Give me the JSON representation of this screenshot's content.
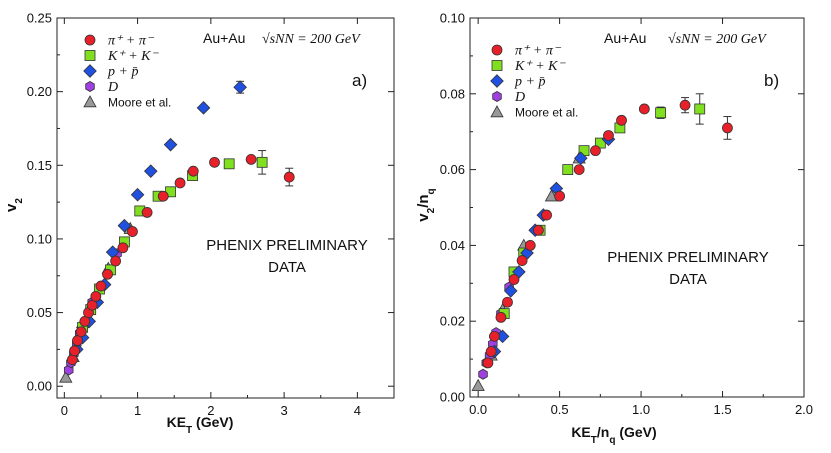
{
  "chart_data": [
    {
      "type": "scatter",
      "panel_label": "a)",
      "collision": "Au+Au",
      "energy_label": "√sNN = 200 GeV",
      "xlabel": "KE_T (GeV)",
      "ylabel": "v_2",
      "xlim": [
        -0.1,
        4.5
      ],
      "ylim": [
        -0.008,
        0.25
      ],
      "xticks": [
        "0",
        "1",
        "2",
        "3",
        "4"
      ],
      "yticks": [
        "0.00",
        "0.05",
        "0.10",
        "0.15",
        "0.20",
        "0.25"
      ],
      "annotation_line1": "PHENIX PRELIMINARY",
      "annotation_line2": "DATA",
      "series": [
        {
          "name": "π⁺ + π⁻",
          "marker": "circle",
          "color": "#e8202a",
          "points": [
            [
              0.11,
              0.018
            ],
            [
              0.14,
              0.024
            ],
            [
              0.18,
              0.031
            ],
            [
              0.23,
              0.037
            ],
            [
              0.28,
              0.044
            ],
            [
              0.33,
              0.05
            ],
            [
              0.38,
              0.055
            ],
            [
              0.43,
              0.061
            ],
            [
              0.5,
              0.068
            ],
            [
              0.59,
              0.076
            ],
            [
              0.7,
              0.085
            ],
            [
              0.8,
              0.094
            ],
            [
              0.93,
              0.105
            ],
            [
              1.13,
              0.118
            ],
            [
              1.35,
              0.129
            ],
            [
              1.58,
              0.138
            ],
            [
              1.76,
              0.146
            ],
            [
              2.05,
              0.152
            ],
            [
              2.55,
              0.154
            ],
            [
              3.07,
              0.142
            ]
          ],
          "errors": [
            [
              3.07,
              0.006
            ]
          ]
        },
        {
          "name": "K⁺ + K⁻",
          "marker": "square",
          "color": "#80e020",
          "points": [
            [
              0.25,
              0.04
            ],
            [
              0.36,
              0.052
            ],
            [
              0.48,
              0.066
            ],
            [
              0.63,
              0.079
            ],
            [
              0.82,
              0.098
            ],
            [
              1.03,
              0.119
            ],
            [
              1.28,
              0.129
            ],
            [
              1.45,
              0.132
            ],
            [
              1.75,
              0.143
            ],
            [
              2.25,
              0.151
            ],
            [
              2.7,
              0.152
            ]
          ],
          "errors": [
            [
              2.7,
              0.008
            ]
          ]
        },
        {
          "name": "p + p̄",
          "marker": "diamond",
          "color": "#2050e0",
          "points": [
            [
              0.17,
              0.025
            ],
            [
              0.25,
              0.033
            ],
            [
              0.34,
              0.044
            ],
            [
              0.45,
              0.057
            ],
            [
              0.55,
              0.069
            ],
            [
              0.66,
              0.091
            ],
            [
              0.82,
              0.109
            ],
            [
              1.0,
              0.13
            ],
            [
              1.18,
              0.146
            ],
            [
              1.45,
              0.164
            ],
            [
              1.9,
              0.189
            ],
            [
              2.4,
              0.203
            ]
          ],
          "errors": [
            [
              2.4,
              0.004
            ]
          ]
        },
        {
          "name": "D",
          "marker": "hexagon",
          "color": "#a040e0",
          "points": [
            [
              0.06,
              0.011
            ],
            [
              0.09,
              0.016
            ],
            [
              0.13,
              0.022
            ],
            [
              0.17,
              0.029
            ],
            [
              0.21,
              0.036
            ],
            [
              0.28,
              0.044
            ],
            [
              0.38,
              0.057
            ],
            [
              0.5,
              0.068
            ],
            [
              0.72,
              0.09
            ]
          ],
          "errors": []
        },
        {
          "name": "Moore  et al.",
          "marker": "triangle",
          "color": "#999999",
          "points": [
            [
              0.02,
              0.006
            ],
            [
              0.12,
              0.02
            ],
            [
              0.25,
              0.043
            ],
            [
              0.4,
              0.059
            ],
            [
              0.6,
              0.08
            ],
            [
              0.9,
              0.107
            ]
          ],
          "errors": []
        }
      ]
    },
    {
      "type": "scatter",
      "panel_label": "b)",
      "collision": "Au+Au",
      "energy_label": "√sNN = 200 GeV",
      "xlabel": "KE_T/n_q (GeV)",
      "ylabel": "v_2/n_q",
      "xlim": [
        -0.05,
        2.0
      ],
      "ylim": [
        0,
        0.1
      ],
      "xticks": [
        "0.0",
        "0.5",
        "1.0",
        "1.5",
        "2.0"
      ],
      "yticks": [
        "0.00",
        "0.02",
        "0.04",
        "0.06",
        "0.08",
        "0.10"
      ],
      "annotation_line1": "PHENIX PRELIMINARY",
      "annotation_line2": "DATA",
      "series": [
        {
          "name": "π⁺ + π⁻",
          "marker": "circle",
          "color": "#e8202a",
          "points": [
            [
              0.06,
              0.009
            ],
            [
              0.08,
              0.012
            ],
            [
              0.1,
              0.016
            ],
            [
              0.14,
              0.021
            ],
            [
              0.18,
              0.025
            ],
            [
              0.22,
              0.031
            ],
            [
              0.27,
              0.036
            ],
            [
              0.32,
              0.04
            ],
            [
              0.37,
              0.044
            ],
            [
              0.42,
              0.048
            ],
            [
              0.5,
              0.053
            ],
            [
              0.62,
              0.06
            ],
            [
              0.72,
              0.065
            ],
            [
              0.8,
              0.069
            ],
            [
              0.88,
              0.073
            ],
            [
              1.02,
              0.076
            ],
            [
              1.27,
              0.077
            ],
            [
              1.53,
              0.071
            ]
          ],
          "errors": [
            [
              1.27,
              0.002
            ],
            [
              1.53,
              0.003
            ]
          ]
        },
        {
          "name": "K⁺ + K⁻",
          "marker": "square",
          "color": "#80e020",
          "points": [
            [
              0.16,
              0.022
            ],
            [
              0.22,
              0.033
            ],
            [
              0.28,
              0.038
            ],
            [
              0.38,
              0.044
            ],
            [
              0.55,
              0.06
            ],
            [
              0.65,
              0.065
            ],
            [
              0.75,
              0.067
            ],
            [
              0.87,
              0.071
            ],
            [
              1.12,
              0.075
            ],
            [
              1.36,
              0.076
            ]
          ],
          "errors": [
            [
              1.12,
              0.0015
            ],
            [
              1.36,
              0.004
            ]
          ]
        },
        {
          "name": "p + p̄",
          "marker": "diamond",
          "color": "#2050e0",
          "points": [
            [
              0.1,
              0.012
            ],
            [
              0.15,
              0.016
            ],
            [
              0.2,
              0.028
            ],
            [
              0.25,
              0.033
            ],
            [
              0.3,
              0.038
            ],
            [
              0.35,
              0.044
            ],
            [
              0.4,
              0.048
            ],
            [
              0.48,
              0.055
            ],
            [
              0.63,
              0.063
            ],
            [
              0.8,
              0.068
            ]
          ],
          "errors": []
        },
        {
          "name": "D",
          "marker": "hexagon",
          "color": "#a040e0",
          "points": [
            [
              0.03,
              0.006
            ],
            [
              0.05,
              0.009
            ],
            [
              0.07,
              0.011
            ],
            [
              0.09,
              0.014
            ],
            [
              0.11,
              0.017
            ],
            [
              0.14,
              0.022
            ],
            [
              0.19,
              0.029
            ],
            [
              0.27,
              0.036
            ]
          ],
          "errors": []
        },
        {
          "name": "Moore  et al.",
          "marker": "triangle",
          "color": "#999999",
          "points": [
            [
              0.0,
              0.003
            ],
            [
              0.08,
              0.011
            ],
            [
              0.15,
              0.023
            ],
            [
              0.28,
              0.04
            ],
            [
              0.45,
              0.053
            ],
            [
              0.62,
              0.063
            ]
          ],
          "errors": []
        }
      ]
    }
  ]
}
